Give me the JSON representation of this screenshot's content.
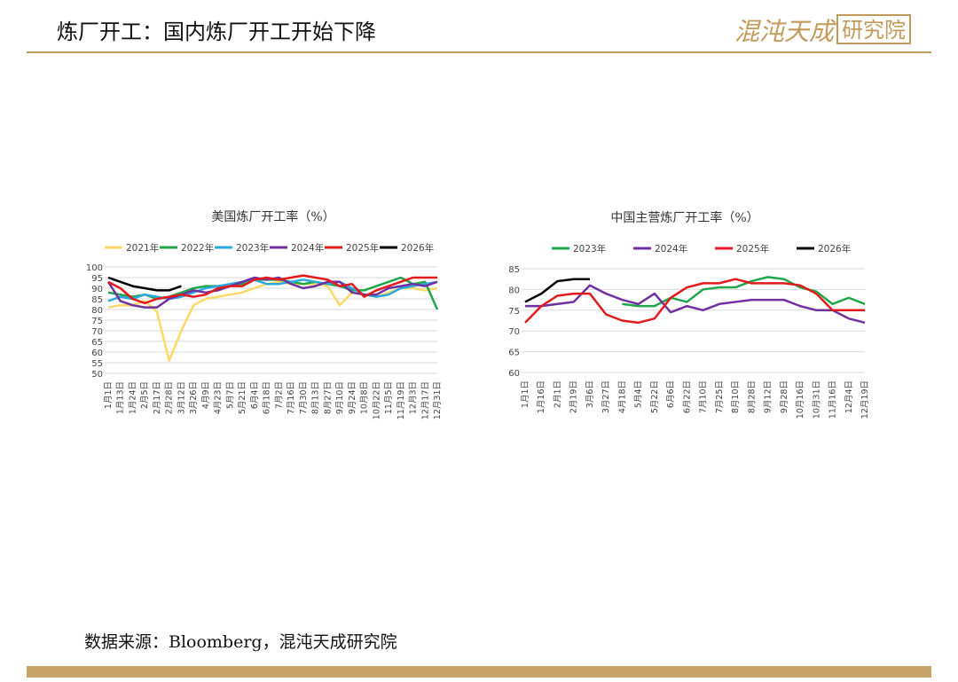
{
  "header": {
    "title": "炼厂开工：国内炼厂开工开始下降",
    "logo_main": "混沌天成",
    "logo_sub": "研究院"
  },
  "footer": {
    "source": "数据来源：Bloomberg，混沌天成研究院"
  },
  "chart_data": [
    {
      "type": "line",
      "title": "美国炼厂开工率（%）",
      "categories": [
        "1月1日",
        "1月13日",
        "1月24日",
        "2月5日",
        "2月17日",
        "2月28日",
        "3月12日",
        "3月26日",
        "4月9日",
        "4月23日",
        "5月7日",
        "5月21日",
        "6月4日",
        "6月18日",
        "7月2日",
        "7月16日",
        "7月30日",
        "8月13日",
        "8月27日",
        "9月10日",
        "9月24日",
        "10月8日",
        "10月22日",
        "11月5日",
        "11月19日",
        "12月3日",
        "12月17日",
        "12月31日"
      ],
      "ylim": [
        50,
        100
      ],
      "yticks": [
        50,
        55,
        60,
        65,
        70,
        75,
        80,
        85,
        90,
        95,
        100
      ],
      "grid": true,
      "series": [
        {
          "name": "2021年",
          "color": "#FFD966",
          "values": [
            81,
            82,
            82,
            84,
            79,
            56,
            70,
            82,
            85,
            86,
            87,
            88,
            90,
            92,
            93,
            92,
            92,
            92,
            91,
            82,
            88,
            87,
            86,
            88,
            90,
            90,
            89,
            90
          ]
        },
        {
          "name": "2022年",
          "color": "#1FA64A",
          "values": [
            88,
            87,
            86,
            87,
            85,
            86,
            88,
            90,
            91,
            91,
            91,
            92,
            94,
            94,
            94,
            93,
            92,
            93,
            92,
            91,
            89,
            89,
            91,
            93,
            95,
            92,
            93,
            80
          ]
        },
        {
          "name": "2023年",
          "color": "#2AA9E0",
          "values": [
            84,
            86,
            85,
            87,
            86,
            85,
            86,
            88,
            90,
            91,
            92,
            93,
            94,
            92,
            92,
            93,
            94,
            93,
            92,
            93,
            90,
            87,
            86,
            87,
            90,
            91,
            92,
            93
          ]
        },
        {
          "name": "2024年",
          "color": "#7030A0",
          "values": [
            93,
            84,
            82,
            81,
            81,
            85,
            87,
            89,
            88,
            89,
            91,
            93,
            95,
            94,
            95,
            92,
            90,
            91,
            93,
            93,
            88,
            87,
            87,
            90,
            91,
            92,
            91,
            93
          ]
        },
        {
          "name": "2025年",
          "color": "#E31A1C",
          "values": [
            93,
            90,
            85,
            83,
            85,
            86,
            87,
            86,
            87,
            90,
            91,
            91,
            94,
            95,
            94,
            95,
            96,
            95,
            94,
            91,
            92,
            86,
            89,
            91,
            93,
            95,
            95,
            95
          ]
        },
        {
          "name": "2026年",
          "color": "#000000",
          "values": [
            95,
            93,
            91,
            90,
            89,
            89,
            91,
            null,
            null,
            null,
            null,
            null,
            null,
            null,
            null,
            null,
            null,
            null,
            null,
            null,
            null,
            null,
            null,
            null,
            null,
            null,
            null,
            null
          ]
        }
      ]
    },
    {
      "type": "line",
      "title": "中国主营炼厂开工率（%）",
      "categories": [
        "1月1日",
        "1月16日",
        "2月1日",
        "2月19日",
        "3月6日",
        "3月27日",
        "4月18日",
        "5月4日",
        "5月22日",
        "6月6日",
        "6月22日",
        "7月10日",
        "7月25日",
        "8月10日",
        "8月28日",
        "9月12日",
        "9月28日",
        "10月16日",
        "10月31日",
        "11月16日",
        "12月4日",
        "12月19日"
      ],
      "ylim": [
        60,
        85
      ],
      "yticks": [
        60,
        65,
        70,
        75,
        80,
        85
      ],
      "grid": true,
      "series": [
        {
          "name": "2023年",
          "color": "#1FA64A",
          "values": [
            null,
            null,
            null,
            null,
            null,
            null,
            76.5,
            76,
            76,
            78,
            77,
            80,
            80.5,
            80.5,
            82,
            83,
            82.5,
            80.5,
            79.5,
            76.5,
            78,
            76.5
          ]
        },
        {
          "name": "2024年",
          "color": "#7030A0",
          "values": [
            76,
            76,
            76.5,
            77,
            81,
            79,
            77.5,
            76.5,
            79,
            74.5,
            76,
            75,
            76.5,
            77,
            77.5,
            77.5,
            77.5,
            76,
            75,
            75,
            73,
            72
          ]
        },
        {
          "name": "2025年",
          "color": "#E31A1C",
          "values": [
            72,
            76,
            78.5,
            79,
            79,
            74,
            72.5,
            72,
            73,
            78,
            80.5,
            81.5,
            81.5,
            82.5,
            81.5,
            81.5,
            81.5,
            81,
            79,
            75,
            75,
            75
          ]
        },
        {
          "name": "2026年",
          "color": "#000000",
          "values": [
            77,
            79,
            82,
            82.5,
            82.5,
            null,
            null,
            null,
            null,
            null,
            null,
            null,
            null,
            null,
            null,
            null,
            null,
            null,
            null,
            null,
            null,
            null
          ]
        }
      ]
    }
  ]
}
